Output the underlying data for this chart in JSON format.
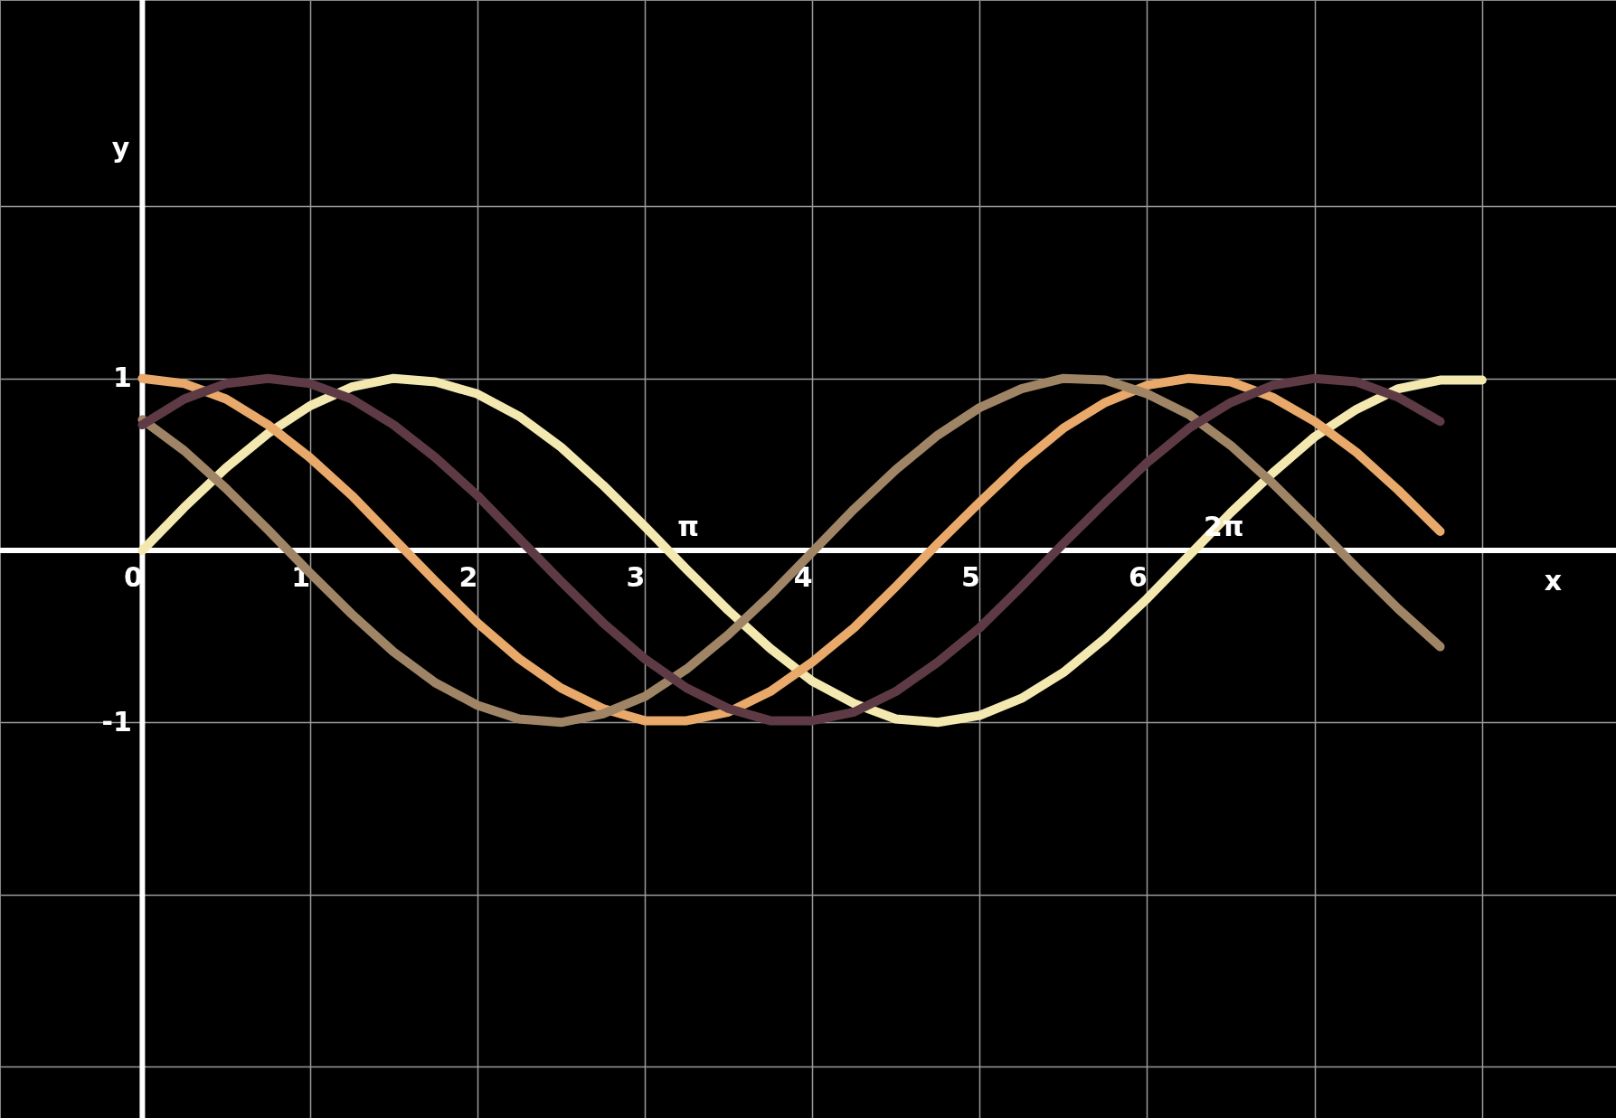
{
  "chart_data": {
    "type": "line",
    "xlabel": "x",
    "ylabel": "y",
    "xlim": [
      -0.85,
      8.8
    ],
    "ylim": [
      -3.3,
      3.2
    ],
    "xticks": [
      0,
      1,
      2,
      3,
      4,
      5,
      6,
      {
        "value": 7,
        "label": null
      },
      {
        "value": 8,
        "label": null
      }
    ],
    "yticks": [
      {
        "value": -3,
        "label": null
      },
      {
        "value": -2,
        "label": null
      },
      -1,
      {
        "value": 0,
        "label": null
      },
      1,
      {
        "value": 2,
        "label": null
      }
    ],
    "grid": true,
    "marker": "none",
    "line_style": "solid",
    "annotations": [
      {
        "text": "π",
        "x": 3.14159,
        "y": 0
      },
      {
        "text": "2π",
        "x": 6.28319,
        "y": 0
      }
    ],
    "series": [
      {
        "color": "#f3e9b0",
        "x": [
          0,
          0.25,
          0.5,
          0.75,
          1,
          1.25,
          1.5,
          1.75,
          2,
          2.25,
          2.5,
          2.75,
          3,
          3.25,
          3.5,
          3.75,
          4,
          4.25,
          4.5,
          4.75,
          5,
          5.25,
          5.5,
          5.75,
          6,
          6.25,
          6.5,
          6.75,
          7,
          7.25,
          7.5,
          7.75,
          8
        ],
        "values": [
          0,
          0.25,
          0.48,
          0.68,
          0.84,
          0.95,
          1.0,
          0.98,
          0.91,
          0.78,
          0.6,
          0.38,
          0.14,
          -0.11,
          -0.35,
          -0.57,
          -0.76,
          -0.89,
          -0.98,
          -1.0,
          -0.96,
          -0.86,
          -0.71,
          -0.51,
          -0.28,
          -0.03,
          0.22,
          0.45,
          0.66,
          0.82,
          0.94,
          0.99,
          0.99
        ]
      },
      {
        "color": "#e8a96a",
        "x": [
          0,
          0.25,
          0.5,
          0.75,
          1,
          1.25,
          1.5,
          1.75,
          2,
          2.25,
          2.5,
          2.75,
          3,
          3.25,
          3.5,
          3.75,
          4,
          4.25,
          4.5,
          4.75,
          5,
          5.25,
          5.5,
          5.75,
          6,
          6.25,
          6.5,
          6.75,
          7,
          7.25,
          7.5,
          7.75
        ],
        "values": [
          1,
          0.97,
          0.88,
          0.73,
          0.54,
          0.32,
          0.07,
          -0.18,
          -0.42,
          -0.63,
          -0.8,
          -0.92,
          -0.99,
          -0.99,
          -0.94,
          -0.82,
          -0.65,
          -0.45,
          -0.21,
          0.04,
          0.28,
          0.51,
          0.71,
          0.86,
          0.96,
          1.0,
          0.98,
          0.89,
          0.75,
          0.57,
          0.35,
          0.11
        ]
      },
      {
        "color": "#a08466",
        "x": [
          0,
          0.25,
          0.5,
          0.75,
          1,
          1.25,
          1.5,
          1.75,
          2,
          2.25,
          2.5,
          2.75,
          3,
          3.25,
          3.5,
          3.75,
          4,
          4.25,
          4.5,
          4.75,
          5,
          5.25,
          5.5,
          5.75,
          6,
          6.25,
          6.5,
          6.75,
          7,
          7.25,
          7.5,
          7.75
        ],
        "values": [
          0.76,
          0.58,
          0.36,
          0.12,
          -0.13,
          -0.37,
          -0.59,
          -0.77,
          -0.9,
          -0.98,
          -1.0,
          -0.95,
          -0.85,
          -0.69,
          -0.49,
          -0.26,
          -0.01,
          0.24,
          0.47,
          0.67,
          0.83,
          0.94,
          1.0,
          0.99,
          0.91,
          0.79,
          0.61,
          0.39,
          0.15,
          -0.1,
          -0.34,
          -0.56
        ]
      },
      {
        "color": "#5e3a45",
        "x": [
          0,
          0.25,
          0.5,
          0.75,
          1,
          1.25,
          1.5,
          1.75,
          2,
          2.25,
          2.5,
          2.75,
          3,
          3.25,
          3.5,
          3.75,
          4,
          4.25,
          4.5,
          4.75,
          5,
          5.25,
          5.5,
          5.75,
          6,
          6.25,
          6.5,
          6.75,
          7,
          7.25,
          7.5,
          7.75
        ],
        "values": [
          0.73,
          0.88,
          0.97,
          1,
          0.97,
          0.88,
          0.73,
          0.54,
          0.32,
          0.07,
          -0.18,
          -0.42,
          -0.63,
          -0.8,
          -0.92,
          -0.99,
          -0.99,
          -0.94,
          -0.82,
          -0.65,
          -0.45,
          -0.21,
          0.04,
          0.28,
          0.51,
          0.71,
          0.86,
          0.96,
          1.0,
          0.98,
          0.89,
          0.75
        ]
      }
    ]
  }
}
